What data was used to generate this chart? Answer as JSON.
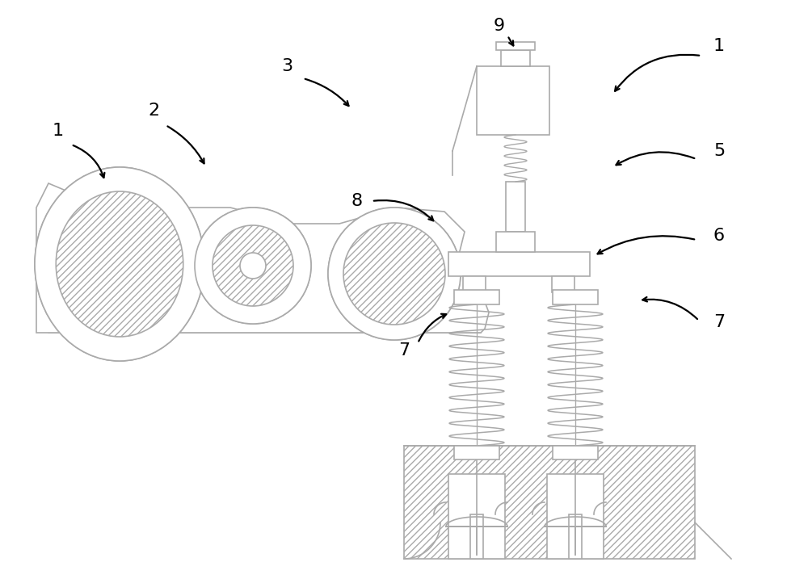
{
  "bg_color": "#ffffff",
  "lc": "#aaaaaa",
  "lc2": "#bbbbbb",
  "ac": "#000000",
  "figsize": [
    10.0,
    7.17
  ],
  "dpi": 100
}
